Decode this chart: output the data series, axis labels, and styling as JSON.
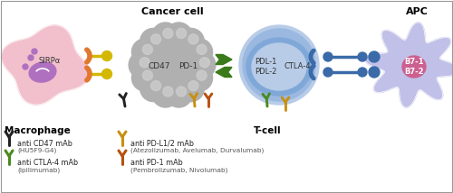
{
  "fig_width": 5.0,
  "fig_height": 2.14,
  "dpi": 100,
  "bg_color": "#ffffff",
  "title_cancer": "Cancer cell",
  "title_apc": "APC",
  "label_macrophage": "Macrophage",
  "label_tcell": "T-cell",
  "label_sirp": "SIRPα",
  "label_cd47": "CD47",
  "label_pd1": "PD-1",
  "label_pdl12": "PDL-1\nPDL-2",
  "label_ctla4": "CTLA-4",
  "label_b712": "B7-1\nB7-2",
  "macrophage_color": "#f2c0cc",
  "macrophage_nucleus_color": "#b070c0",
  "cancer_color": "#b0b0b0",
  "tcell_outer_color": "#b8cce8",
  "tcell_inner_color": "#7fa8d8",
  "apc_color": "#c0c0e8",
  "apc_nucleus_color": "#cc6090",
  "sirp_color": "#e07830",
  "cd47_connector_color": "#d4b800",
  "pdarrow_color": "#3a7a1a",
  "ctla4_color": "#3a6aa8",
  "legend_items": [
    {
      "color": "#222222",
      "label1": "anti CD47 mAb",
      "label2": "(HU5F9-G4)",
      "col": 0,
      "row": 0
    },
    {
      "color": "#c89010",
      "label1": "anti PD-L1/2 mAb",
      "label2": "(Atezolizumab, Avelumab, Durvalumab)",
      "col": 1,
      "row": 0
    },
    {
      "color": "#4a8a20",
      "label1": "anti CTLA-4 mAb",
      "label2": "(Ipilimumab)",
      "col": 0,
      "row": 1
    },
    {
      "color": "#b85010",
      "label1": "anti PD-1 mAb",
      "label2": "(Pembrolizumab, Nivolumab)",
      "col": 1,
      "row": 1
    }
  ]
}
